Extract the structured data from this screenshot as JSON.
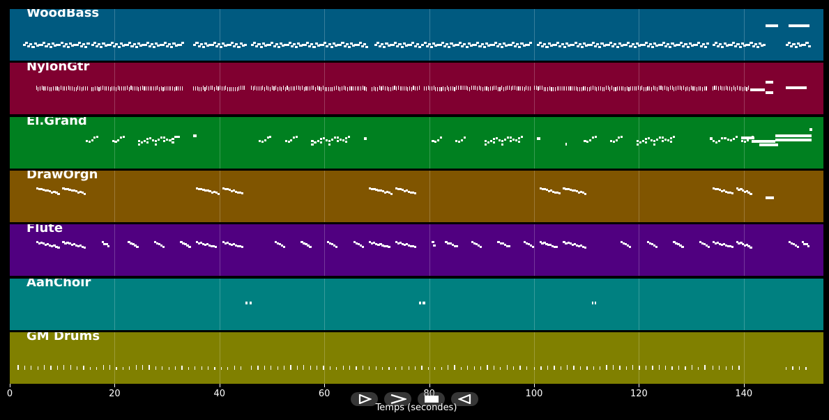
{
  "chart_data": {
    "type": "piano-roll",
    "xlabel": "Temps (secondes)",
    "xlim": [
      0,
      155
    ],
    "xticks": [
      0,
      20,
      40,
      60,
      80,
      100,
      120,
      140
    ],
    "xtick_labels": [
      "0",
      "20",
      "40",
      "60",
      "80",
      "100",
      "120",
      "140"
    ],
    "tracks": [
      {
        "name": "WoodBass",
        "color": "#005a80",
        "pattern": "bass",
        "segments": [
          [
            2.5,
            15
          ],
          [
            15.5,
            33
          ],
          [
            35,
            45
          ],
          [
            46,
            68
          ],
          [
            69.5,
            78
          ],
          [
            78.5,
            99.5
          ],
          [
            100.5,
            133
          ],
          [
            134,
            144
          ],
          [
            148,
            152.5
          ]
        ],
        "notes": [
          [
            144.2,
            146.5,
            0.3
          ],
          [
            148.5,
            152.5,
            0.3
          ]
        ]
      },
      {
        "name": "NylonGtr",
        "color": "#800030",
        "pattern": "strum",
        "segments": [
          [
            5,
            15
          ],
          [
            15.5,
            33
          ],
          [
            35,
            45
          ],
          [
            46,
            68
          ],
          [
            69,
            78
          ],
          [
            79,
            99.5
          ],
          [
            100,
            133
          ],
          [
            134,
            141
          ]
        ],
        "notes": [
          [
            141.2,
            144,
            0.5
          ],
          [
            144.2,
            145.6,
            0.35
          ],
          [
            144.2,
            145.6,
            0.55
          ],
          [
            148,
            152,
            0.45
          ]
        ]
      },
      {
        "name": "El.Grand",
        "color": "#008020",
        "pattern": "melody",
        "segments": [
          [
            14.5,
            17
          ],
          [
            19.5,
            22
          ],
          [
            24.5,
            32.5
          ],
          [
            47.5,
            50
          ],
          [
            52.5,
            55
          ],
          [
            57.5,
            65
          ],
          [
            80.5,
            82.5
          ],
          [
            85,
            87
          ],
          [
            90.5,
            98
          ],
          [
            109.5,
            112
          ],
          [
            114.5,
            117
          ],
          [
            119.5,
            127
          ],
          [
            134,
            139
          ],
          [
            139.5,
            142
          ]
        ],
        "notes": [
          [
            35,
            35.6,
            0.35
          ],
          [
            67.5,
            68.1,
            0.4
          ],
          [
            100.5,
            101.2,
            0.4
          ],
          [
            106,
            106.3,
            0.5
          ],
          [
            133.5,
            134.1,
            0.4
          ],
          [
            139.5,
            142,
            0.38
          ],
          [
            141.5,
            146,
            0.45
          ],
          [
            143,
            146.5,
            0.52
          ],
          [
            146,
            153,
            0.35
          ],
          [
            146,
            153,
            0.43
          ],
          [
            152.5,
            153,
            0.22
          ]
        ]
      },
      {
        "name": "DrawOrgn",
        "color": "#805500",
        "pattern": "descend",
        "segments": [
          [
            5,
            9.5
          ],
          [
            10,
            14.5
          ],
          [
            35.5,
            40
          ],
          [
            40.5,
            44.5
          ],
          [
            68.5,
            73
          ],
          [
            73.5,
            77.5
          ],
          [
            101,
            105
          ],
          [
            105.5,
            110
          ],
          [
            134,
            138
          ],
          [
            138.5,
            141.5
          ]
        ],
        "notes": [
          [
            144.2,
            145.7,
            0.5
          ]
        ]
      },
      {
        "name": "Flute",
        "color": "#500080",
        "pattern": "descend",
        "segments": [
          [
            5,
            9.5
          ],
          [
            10,
            14.5
          ],
          [
            17.5,
            19
          ],
          [
            22.5,
            24.5
          ],
          [
            27.5,
            29.5
          ],
          [
            32.5,
            34.5
          ],
          [
            35.5,
            39.5
          ],
          [
            40.5,
            44.5
          ],
          [
            50.5,
            52.5
          ],
          [
            55.5,
            57.5
          ],
          [
            60.5,
            62.5
          ],
          [
            65.5,
            67.5
          ],
          [
            68.5,
            72.5
          ],
          [
            73.5,
            77.5
          ],
          [
            80.5,
            81
          ],
          [
            83,
            85.5
          ],
          [
            88,
            90
          ],
          [
            93,
            95.5
          ],
          [
            98,
            100
          ],
          [
            101,
            104.5
          ],
          [
            105.5,
            110
          ],
          [
            116.5,
            118.5
          ],
          [
            121.5,
            123.5
          ],
          [
            126.5,
            128.5
          ],
          [
            131.5,
            133.5
          ],
          [
            134,
            138
          ],
          [
            138.5,
            141.5
          ],
          [
            148.5,
            150.5
          ],
          [
            151,
            152.5
          ]
        ],
        "notes": []
      },
      {
        "name": "AahChoir",
        "color": "#008080",
        "pattern": "none",
        "segments": [],
        "notes": [
          [
            45,
            45.4,
            0.45
          ],
          [
            45.7,
            46.2,
            0.45
          ],
          [
            78,
            78.4,
            0.45
          ],
          [
            78.7,
            79.3,
            0.45
          ],
          [
            111,
            111.3,
            0.45
          ],
          [
            111.6,
            111.9,
            0.45
          ]
        ]
      },
      {
        "name": "GM Drums",
        "color": "#808000",
        "pattern": "drums",
        "segments": [
          [
            1.5,
            45
          ],
          [
            46,
            99.5
          ],
          [
            100,
            133.5
          ],
          [
            134,
            140
          ],
          [
            148,
            152.5
          ]
        ],
        "notes": []
      }
    ]
  },
  "toolbar": {
    "play": "play-button",
    "fast_forward": "fast-forward-button",
    "stop": "stop-button",
    "rewind": "rewind-button"
  }
}
